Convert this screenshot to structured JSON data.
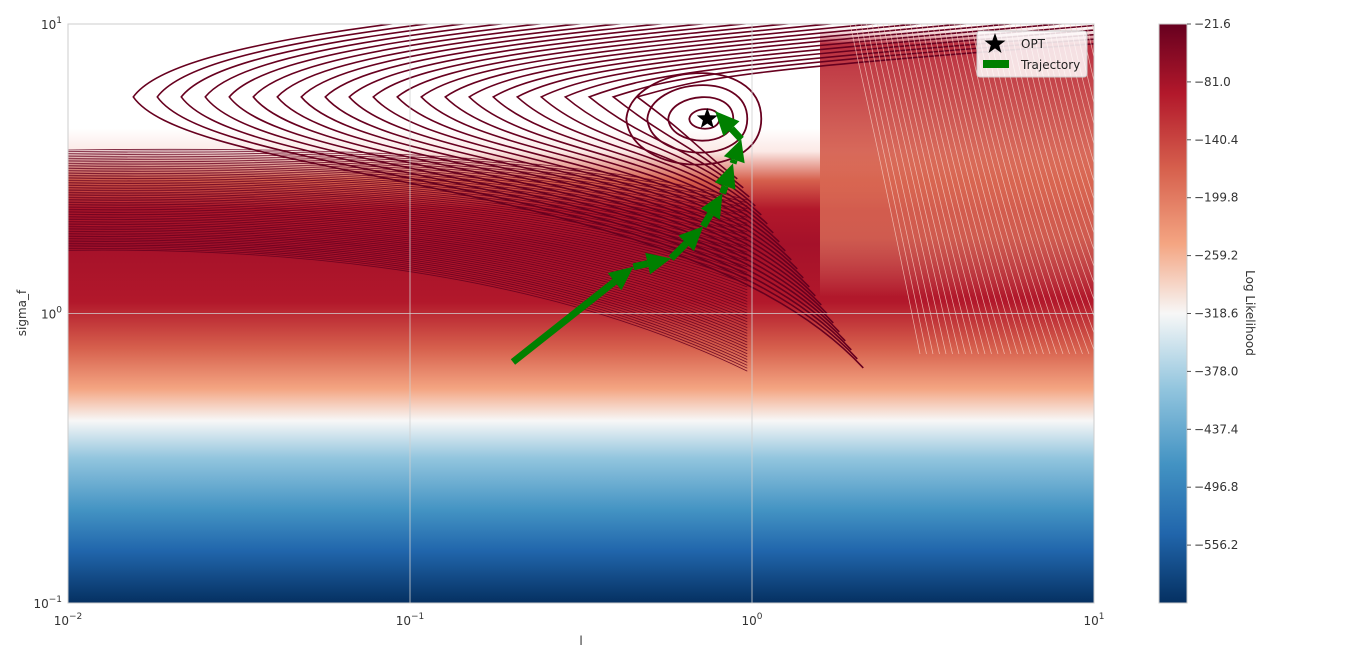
{
  "chart_data": {
    "type": "heatmap",
    "title": "",
    "xlabel": "l",
    "ylabel": "sigma_f",
    "x_scale": "log",
    "y_scale": "log",
    "xlim": [
      0.01,
      10
    ],
    "ylim": [
      0.1,
      10
    ],
    "x_ticks": [
      {
        "value": 0.01,
        "base": "10",
        "exp": "−2"
      },
      {
        "value": 0.1,
        "base": "10",
        "exp": "−1"
      },
      {
        "value": 1,
        "base": "10",
        "exp": "0"
      },
      {
        "value": 10,
        "base": "10",
        "exp": "1"
      }
    ],
    "y_ticks": [
      {
        "value": 0.1,
        "base": "10",
        "exp": "−1"
      },
      {
        "value": 1,
        "base": "10",
        "exp": "0"
      },
      {
        "value": 10,
        "base": "10",
        "exp": "1"
      }
    ],
    "colormap": "RdBu_r",
    "colorbar": {
      "label": "Log Likelihood",
      "range": [
        -615.6,
        -21.6
      ],
      "ticks": [
        "−21.6",
        "−81.0",
        "−140.4",
        "−199.8",
        "−259.2",
        "−318.6",
        "−378.0",
        "−437.4",
        "−496.8",
        "−556.2"
      ],
      "tick_values": [
        -21.6,
        -81.0,
        -140.4,
        -199.8,
        -259.2,
        -318.6,
        -378.0,
        -437.4,
        -496.8,
        -556.2
      ]
    },
    "contour_color": "#67001f",
    "optimum": {
      "name": "OPT",
      "x": 0.74,
      "y": 4.7
    },
    "trajectory": {
      "name": "Trajectory",
      "color": "#008000",
      "points": [
        {
          "x": 0.2,
          "y": 0.68
        },
        {
          "x": 0.45,
          "y": 1.45
        },
        {
          "x": 0.58,
          "y": 1.55
        },
        {
          "x": 0.72,
          "y": 2.0
        },
        {
          "x": 0.82,
          "y": 2.6
        },
        {
          "x": 0.88,
          "y": 3.3
        },
        {
          "x": 0.93,
          "y": 4.0
        },
        {
          "x": 0.78,
          "y": 5.0
        }
      ]
    },
    "legend": {
      "position": "top-right",
      "entries": [
        {
          "label": "OPT",
          "marker": "star"
        },
        {
          "label": "Trajectory",
          "marker": "arrow"
        }
      ]
    },
    "grid": true
  },
  "colors": {
    "dark_red": "#67001f",
    "red": "#b2182b",
    "white": "#f7f7f7",
    "blue": "#2166ac",
    "dark_blue": "#053061",
    "green": "#008000"
  }
}
